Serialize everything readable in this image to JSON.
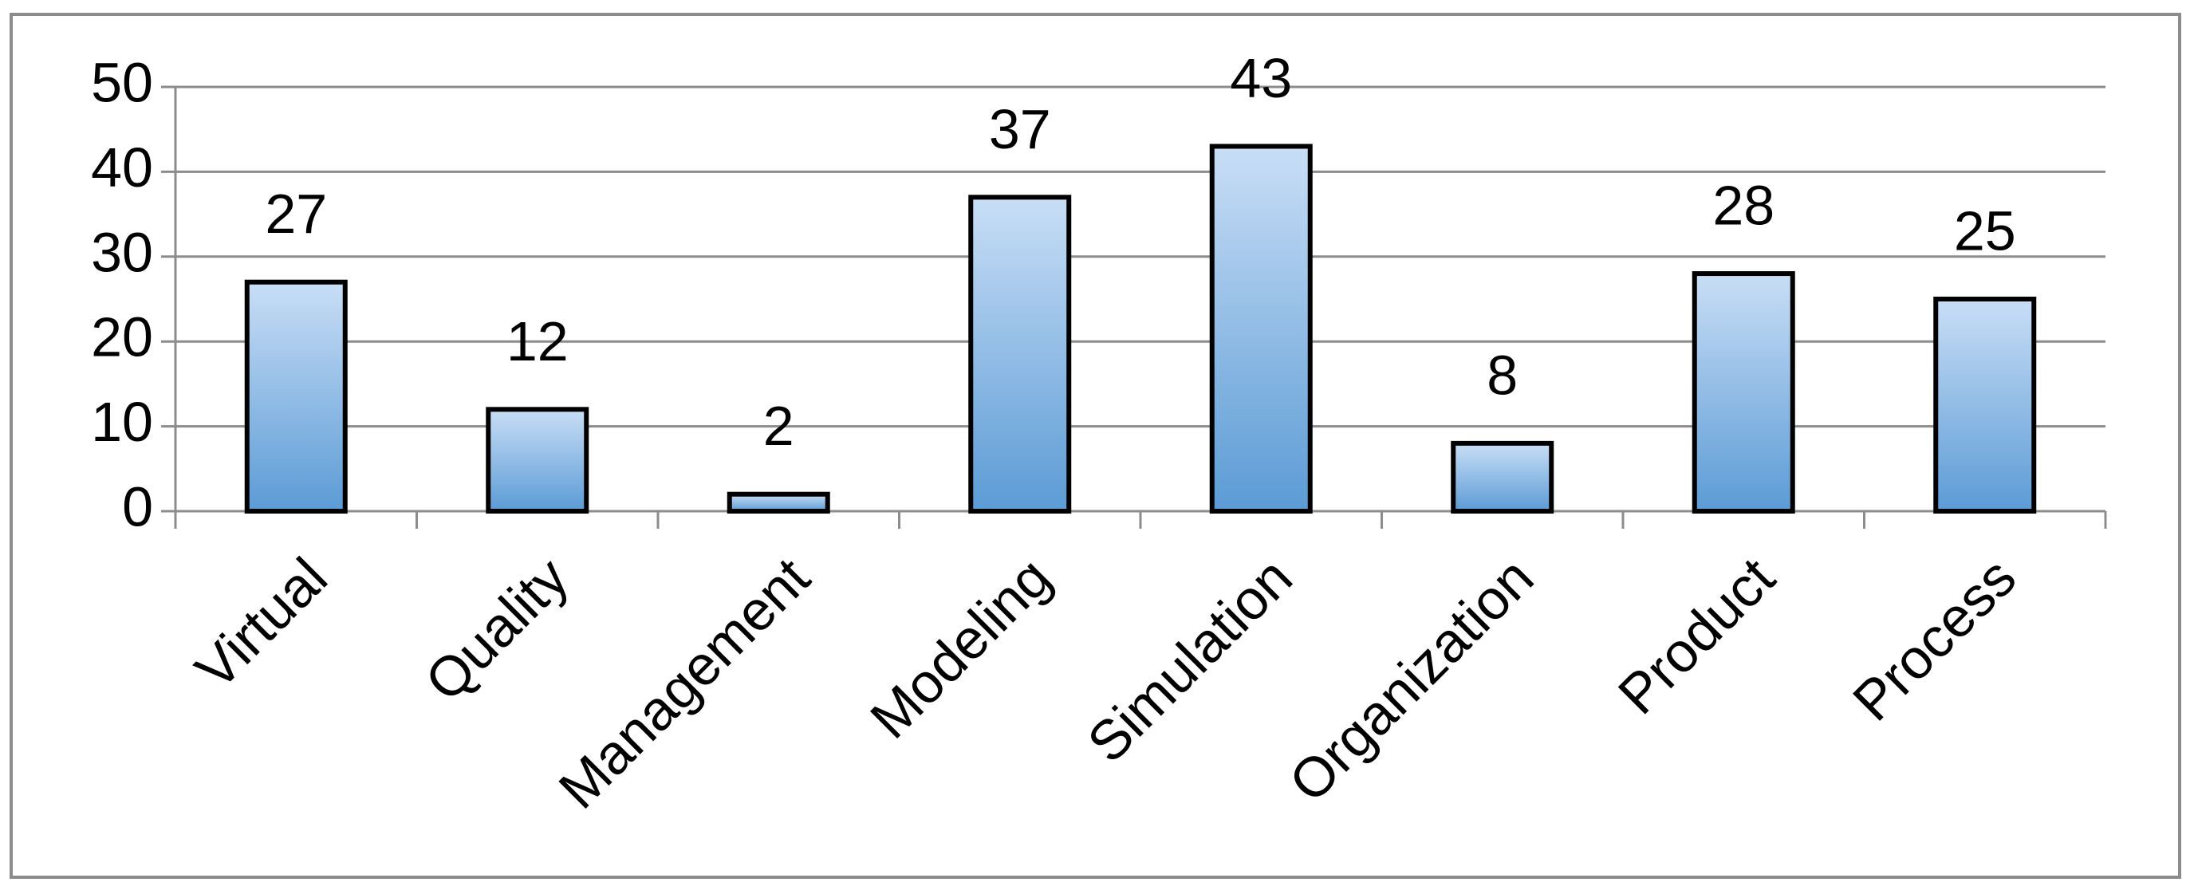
{
  "chart_data": {
    "type": "bar",
    "categories": [
      "Virtual",
      "Quality",
      "Management",
      "Modeling",
      "Simulation",
      "Organization",
      "Product",
      "Process"
    ],
    "values": [
      27,
      12,
      2,
      37,
      43,
      8,
      28,
      25
    ],
    "color": "#5b9bd5",
    "ylim": [
      0,
      50
    ],
    "yticks": [
      0,
      10,
      20,
      30,
      40,
      50
    ],
    "grid": true
  }
}
